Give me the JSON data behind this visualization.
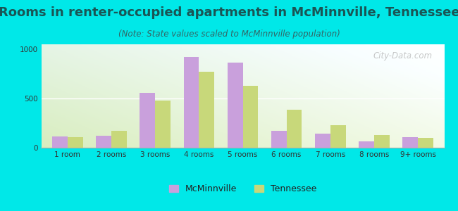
{
  "title": "Rooms in renter-occupied apartments in McMinnville, Tennessee",
  "subtitle": "(Note: State values scaled to McMinnville population)",
  "categories": [
    "1 room",
    "2 rooms",
    "3 rooms",
    "4 rooms",
    "5 rooms",
    "6 rooms",
    "7 rooms",
    "8 rooms",
    "9+ rooms"
  ],
  "mcminnville_values": [
    115,
    120,
    555,
    920,
    865,
    170,
    145,
    65,
    105
  ],
  "tennessee_values": [
    110,
    175,
    480,
    770,
    630,
    385,
    230,
    130,
    100
  ],
  "mcminnville_color": "#c9a0dc",
  "tennessee_color": "#c8d87a",
  "bar_width": 0.35,
  "ylim": [
    0,
    1050
  ],
  "yticks": [
    0,
    500,
    1000
  ],
  "background_color_outer": "#00e8e8",
  "title_color": "#1a5555",
  "subtitle_color": "#336666",
  "title_fontsize": 13,
  "subtitle_fontsize": 8.5,
  "tick_fontsize": 7.5,
  "legend_fontsize": 9,
  "watermark_text": "City-Data.com"
}
